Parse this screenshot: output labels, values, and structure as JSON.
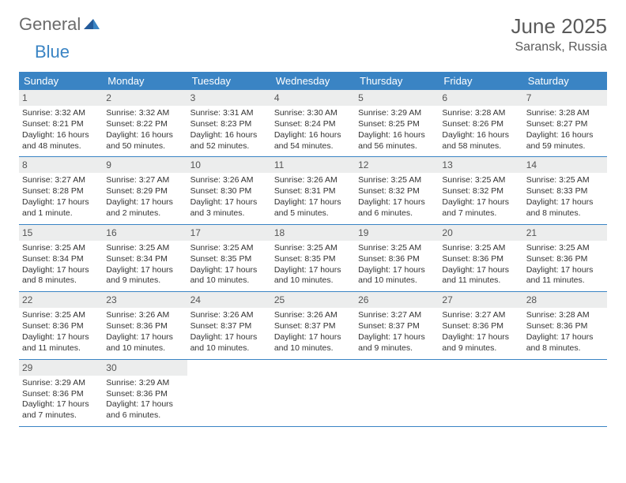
{
  "brand": {
    "word1": "General",
    "word2": "Blue"
  },
  "colors": {
    "header_bg": "#3a84c4",
    "header_text": "#ffffff",
    "daynum_bg": "#eceded",
    "text": "#333333",
    "rule": "#3a84c4",
    "brand_gray": "#6b6b6b",
    "brand_blue": "#3a84c4"
  },
  "title": "June 2025",
  "location": "Saransk, Russia",
  "weekdays": [
    "Sunday",
    "Monday",
    "Tuesday",
    "Wednesday",
    "Thursday",
    "Friday",
    "Saturday"
  ],
  "weeks": [
    [
      {
        "n": "1",
        "sr": "Sunrise: 3:32 AM",
        "ss": "Sunset: 8:21 PM",
        "d1": "Daylight: 16 hours",
        "d2": "and 48 minutes."
      },
      {
        "n": "2",
        "sr": "Sunrise: 3:32 AM",
        "ss": "Sunset: 8:22 PM",
        "d1": "Daylight: 16 hours",
        "d2": "and 50 minutes."
      },
      {
        "n": "3",
        "sr": "Sunrise: 3:31 AM",
        "ss": "Sunset: 8:23 PM",
        "d1": "Daylight: 16 hours",
        "d2": "and 52 minutes."
      },
      {
        "n": "4",
        "sr": "Sunrise: 3:30 AM",
        "ss": "Sunset: 8:24 PM",
        "d1": "Daylight: 16 hours",
        "d2": "and 54 minutes."
      },
      {
        "n": "5",
        "sr": "Sunrise: 3:29 AM",
        "ss": "Sunset: 8:25 PM",
        "d1": "Daylight: 16 hours",
        "d2": "and 56 minutes."
      },
      {
        "n": "6",
        "sr": "Sunrise: 3:28 AM",
        "ss": "Sunset: 8:26 PM",
        "d1": "Daylight: 16 hours",
        "d2": "and 58 minutes."
      },
      {
        "n": "7",
        "sr": "Sunrise: 3:28 AM",
        "ss": "Sunset: 8:27 PM",
        "d1": "Daylight: 16 hours",
        "d2": "and 59 minutes."
      }
    ],
    [
      {
        "n": "8",
        "sr": "Sunrise: 3:27 AM",
        "ss": "Sunset: 8:28 PM",
        "d1": "Daylight: 17 hours",
        "d2": "and 1 minute."
      },
      {
        "n": "9",
        "sr": "Sunrise: 3:27 AM",
        "ss": "Sunset: 8:29 PM",
        "d1": "Daylight: 17 hours",
        "d2": "and 2 minutes."
      },
      {
        "n": "10",
        "sr": "Sunrise: 3:26 AM",
        "ss": "Sunset: 8:30 PM",
        "d1": "Daylight: 17 hours",
        "d2": "and 3 minutes."
      },
      {
        "n": "11",
        "sr": "Sunrise: 3:26 AM",
        "ss": "Sunset: 8:31 PM",
        "d1": "Daylight: 17 hours",
        "d2": "and 5 minutes."
      },
      {
        "n": "12",
        "sr": "Sunrise: 3:25 AM",
        "ss": "Sunset: 8:32 PM",
        "d1": "Daylight: 17 hours",
        "d2": "and 6 minutes."
      },
      {
        "n": "13",
        "sr": "Sunrise: 3:25 AM",
        "ss": "Sunset: 8:32 PM",
        "d1": "Daylight: 17 hours",
        "d2": "and 7 minutes."
      },
      {
        "n": "14",
        "sr": "Sunrise: 3:25 AM",
        "ss": "Sunset: 8:33 PM",
        "d1": "Daylight: 17 hours",
        "d2": "and 8 minutes."
      }
    ],
    [
      {
        "n": "15",
        "sr": "Sunrise: 3:25 AM",
        "ss": "Sunset: 8:34 PM",
        "d1": "Daylight: 17 hours",
        "d2": "and 8 minutes."
      },
      {
        "n": "16",
        "sr": "Sunrise: 3:25 AM",
        "ss": "Sunset: 8:34 PM",
        "d1": "Daylight: 17 hours",
        "d2": "and 9 minutes."
      },
      {
        "n": "17",
        "sr": "Sunrise: 3:25 AM",
        "ss": "Sunset: 8:35 PM",
        "d1": "Daylight: 17 hours",
        "d2": "and 10 minutes."
      },
      {
        "n": "18",
        "sr": "Sunrise: 3:25 AM",
        "ss": "Sunset: 8:35 PM",
        "d1": "Daylight: 17 hours",
        "d2": "and 10 minutes."
      },
      {
        "n": "19",
        "sr": "Sunrise: 3:25 AM",
        "ss": "Sunset: 8:36 PM",
        "d1": "Daylight: 17 hours",
        "d2": "and 10 minutes."
      },
      {
        "n": "20",
        "sr": "Sunrise: 3:25 AM",
        "ss": "Sunset: 8:36 PM",
        "d1": "Daylight: 17 hours",
        "d2": "and 11 minutes."
      },
      {
        "n": "21",
        "sr": "Sunrise: 3:25 AM",
        "ss": "Sunset: 8:36 PM",
        "d1": "Daylight: 17 hours",
        "d2": "and 11 minutes."
      }
    ],
    [
      {
        "n": "22",
        "sr": "Sunrise: 3:25 AM",
        "ss": "Sunset: 8:36 PM",
        "d1": "Daylight: 17 hours",
        "d2": "and 11 minutes."
      },
      {
        "n": "23",
        "sr": "Sunrise: 3:26 AM",
        "ss": "Sunset: 8:36 PM",
        "d1": "Daylight: 17 hours",
        "d2": "and 10 minutes."
      },
      {
        "n": "24",
        "sr": "Sunrise: 3:26 AM",
        "ss": "Sunset: 8:37 PM",
        "d1": "Daylight: 17 hours",
        "d2": "and 10 minutes."
      },
      {
        "n": "25",
        "sr": "Sunrise: 3:26 AM",
        "ss": "Sunset: 8:37 PM",
        "d1": "Daylight: 17 hours",
        "d2": "and 10 minutes."
      },
      {
        "n": "26",
        "sr": "Sunrise: 3:27 AM",
        "ss": "Sunset: 8:37 PM",
        "d1": "Daylight: 17 hours",
        "d2": "and 9 minutes."
      },
      {
        "n": "27",
        "sr": "Sunrise: 3:27 AM",
        "ss": "Sunset: 8:36 PM",
        "d1": "Daylight: 17 hours",
        "d2": "and 9 minutes."
      },
      {
        "n": "28",
        "sr": "Sunrise: 3:28 AM",
        "ss": "Sunset: 8:36 PM",
        "d1": "Daylight: 17 hours",
        "d2": "and 8 minutes."
      }
    ],
    [
      {
        "n": "29",
        "sr": "Sunrise: 3:29 AM",
        "ss": "Sunset: 8:36 PM",
        "d1": "Daylight: 17 hours",
        "d2": "and 7 minutes."
      },
      {
        "n": "30",
        "sr": "Sunrise: 3:29 AM",
        "ss": "Sunset: 8:36 PM",
        "d1": "Daylight: 17 hours",
        "d2": "and 6 minutes."
      },
      {
        "empty": true
      },
      {
        "empty": true
      },
      {
        "empty": true
      },
      {
        "empty": true
      },
      {
        "empty": true
      }
    ]
  ]
}
